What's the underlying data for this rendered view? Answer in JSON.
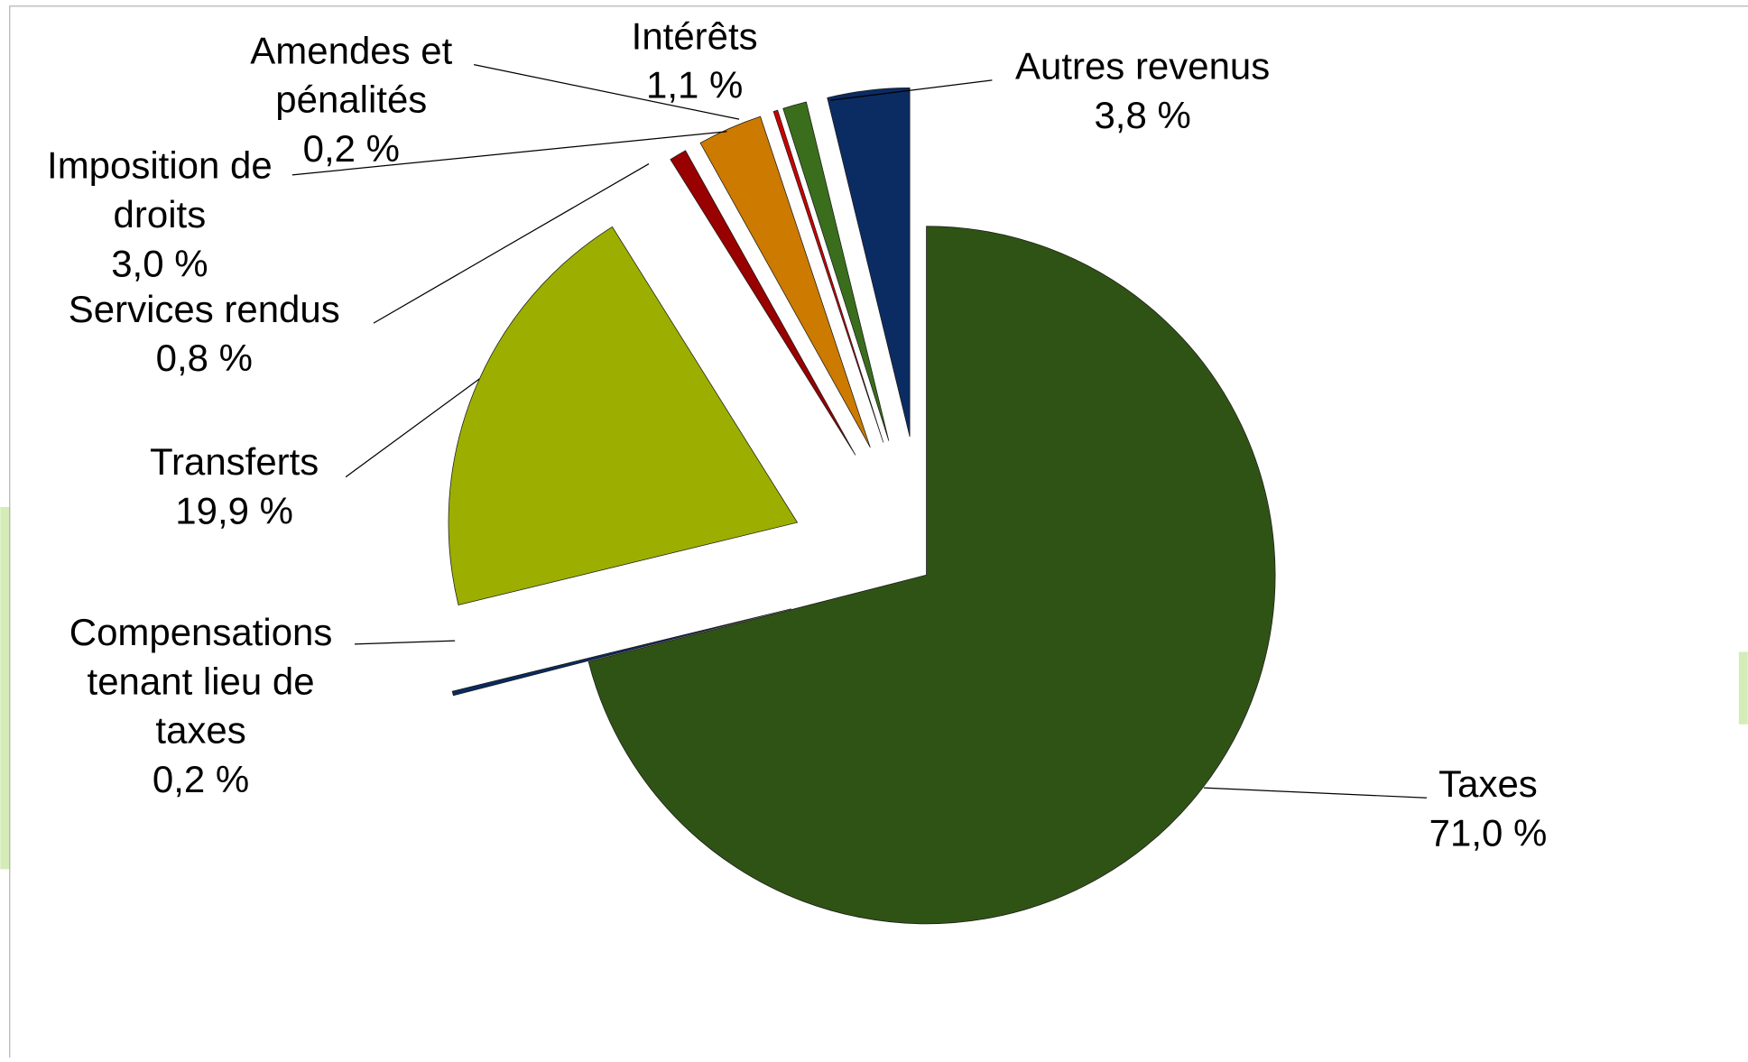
{
  "chart_data": {
    "type": "pie",
    "categories": [
      "Taxes",
      "Compensations\ntenant lieu de\ntaxes",
      "Transferts",
      "Services rendus",
      "Imposition de\ndroits",
      "Amendes et\npénalités",
      "Intérêts",
      "Autres revenus"
    ],
    "values": [
      71.0,
      0.2,
      19.9,
      0.8,
      3.0,
      0.2,
      1.1,
      3.8
    ],
    "value_labels": [
      "71,0 %",
      "0,2 %",
      "19,9 %",
      "0,8 %",
      "3,0 %",
      "0,2 %",
      "1,1 %",
      "3,8 %"
    ],
    "colors": [
      "#2f5314",
      "#0a2a5e",
      "#9caf00",
      "#990000",
      "#cc7a00",
      "#cc0000",
      "#3a6e1c",
      "#0b2c63"
    ]
  }
}
